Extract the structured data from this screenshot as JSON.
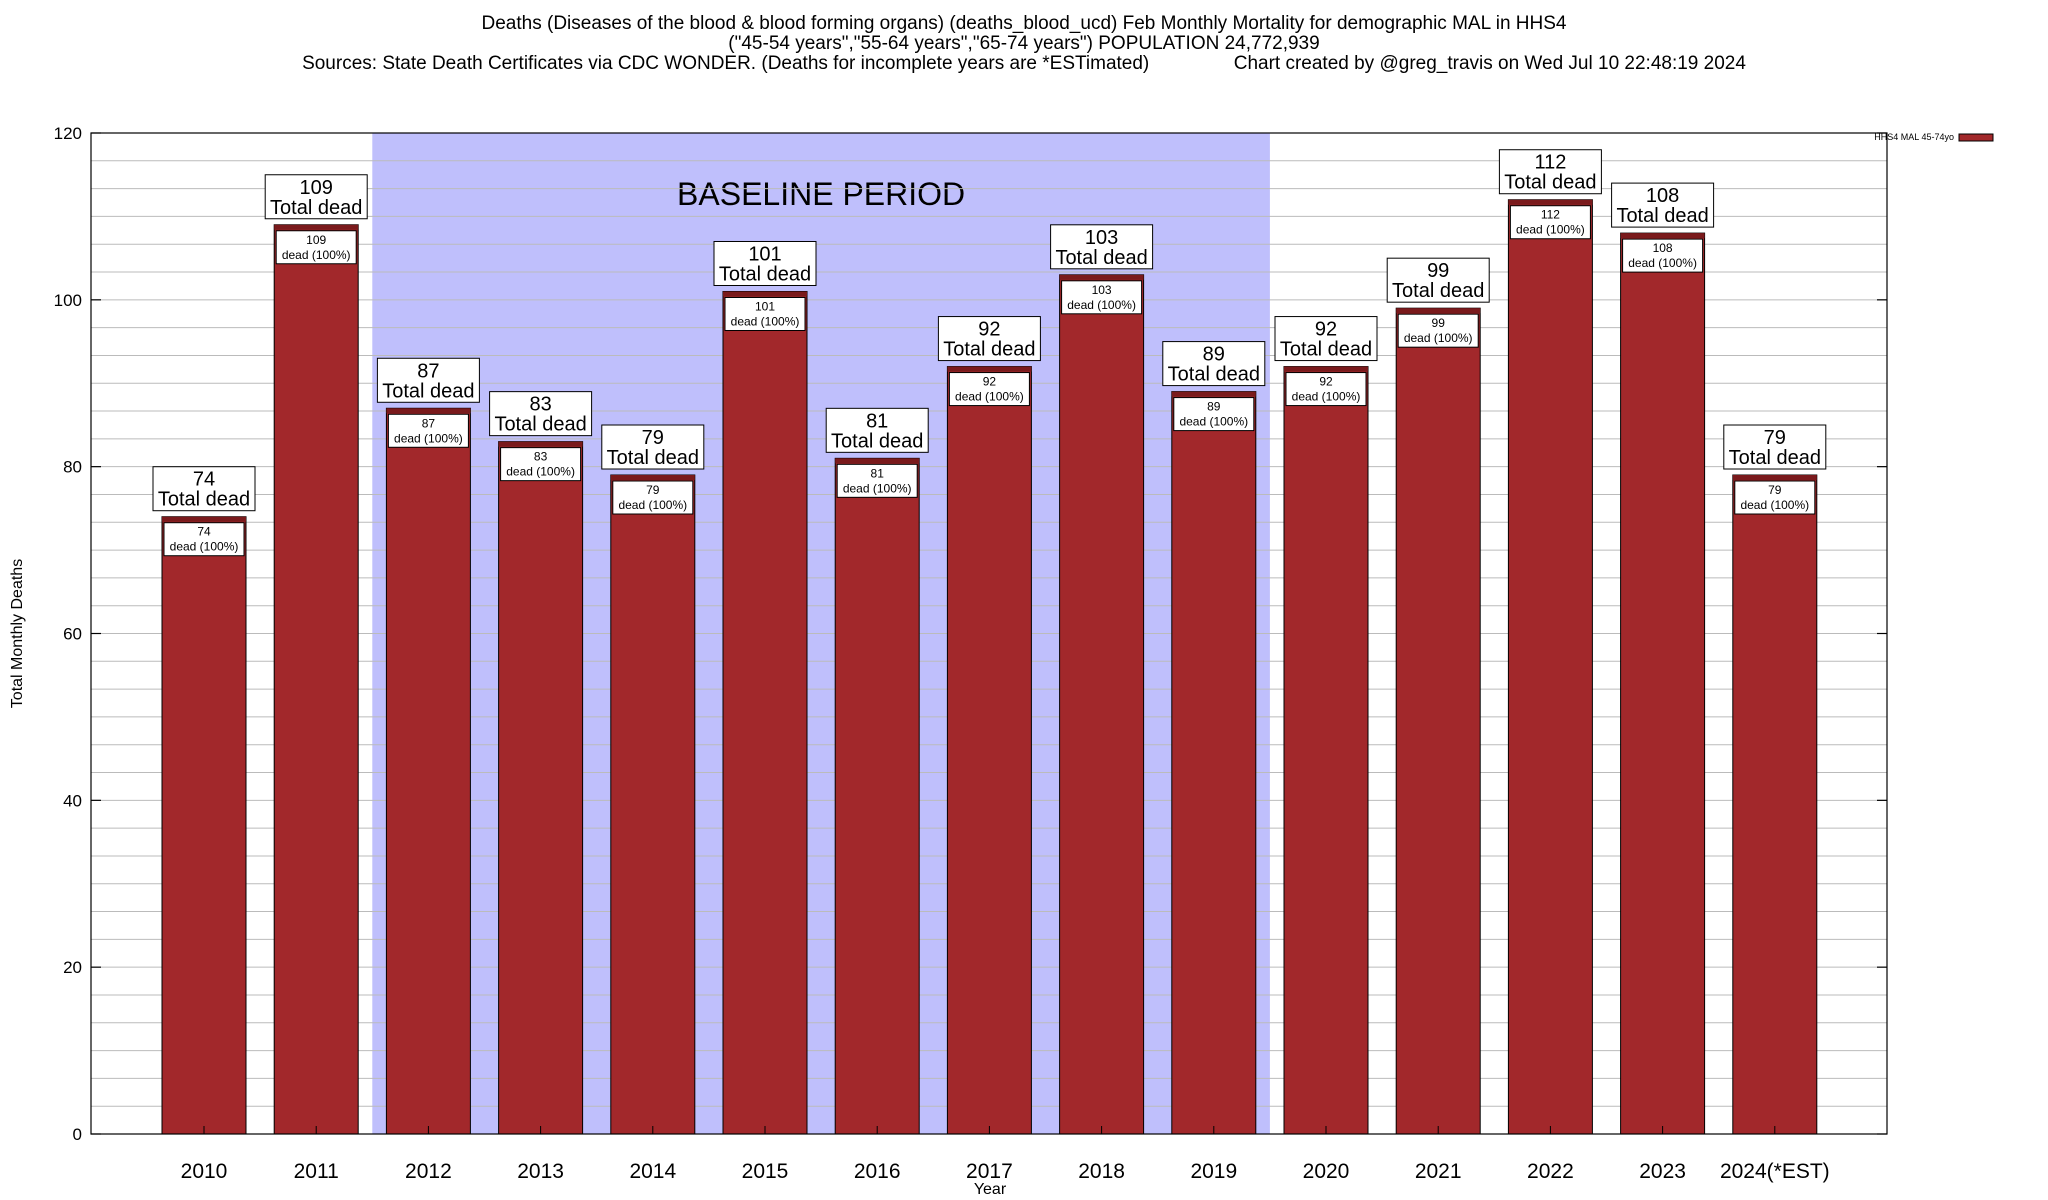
{
  "title_lines": [
    "Deaths (Diseases of the blood & blood forming organs) (deaths_blood_ucd) Feb Monthly Mortality for demographic MAL in HHS4",
    "(\"45-54 years\",\"55-64 years\",\"65-74 years\") POPULATION 24,772,939",
    "Sources: State Death Certificates via CDC WONDER. (Deaths for incomplete years are *ESTimated)                Chart created by @greg_travis on Wed Jul 10 22:48:19 2024"
  ],
  "chart_data": {
    "type": "bar",
    "xlabel": "Year",
    "ylabel": "Total Monthly Deaths",
    "ylim": [
      0,
      120
    ],
    "yticks": [
      0,
      20,
      40,
      60,
      80,
      100,
      120
    ],
    "grid": true,
    "legend": {
      "placement": "top-right",
      "entries": [
        "HHS4 MAL 45-74yo"
      ]
    },
    "categories": [
      "2010",
      "2011",
      "2012",
      "2013",
      "2014",
      "2015",
      "2016",
      "2017",
      "2018",
      "2019",
      "2020",
      "2021",
      "2022",
      "2023",
      "2024(*EST)"
    ],
    "series": [
      {
        "name": "HHS4 MAL 45-74yo",
        "values": [
          74,
          109,
          87,
          83,
          79,
          101,
          81,
          92,
          103,
          89,
          92,
          99,
          112,
          108,
          79
        ]
      }
    ],
    "total_label": "Total dead",
    "inner_label_suffix": "dead (100%)",
    "baseline": {
      "label": "BASELINE PERIOD",
      "start": "2012",
      "end": "2019"
    }
  },
  "colors": {
    "bar_fill": "#a2282b",
    "bar_top": "#7a1a1c",
    "baseline_fill": "#bfbffc",
    "grid": "#bbbbbb",
    "axis": "#000000"
  }
}
